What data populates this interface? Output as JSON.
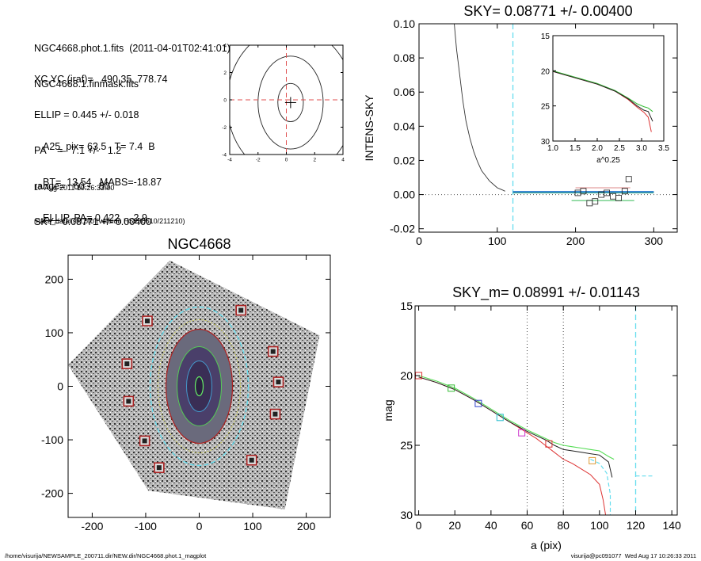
{
  "header": {
    "lines": [
      "NGC4668.phot.1.fits  (2011-04-01T02:41:01)",
      "NGC4668.1.finmask.fits",
      "XC,YC (iraf)=   490.35, 778.74",
      "ELLIP = 0.445 +/- 0.018",
      "PA    =   7.1 +/-   1.2",
      "range=   60.-   80.",
      "SKY= 0.08771 +/- 0.00400",
      "A25_pix= 63.5   T= 7.4  B",
      "BT=  13.54   MABS=-18.87",
      "ELLIP, PA= 0.422     2.9"
    ],
    "date": "17-Aug-2011 10:26:33.00",
    "program": "make_datalist0.pro (version HS230610/211210)"
  },
  "footer": {
    "path": "/home/visurija/NEWSAMPLE_200711.dir/NEW.dir/NGC4668.phot.1_magplot",
    "user": "visurija@pc091077  Wed Aug 17 10:26:33 2011"
  },
  "chart_data": [
    {
      "id": "contour",
      "type": "line",
      "title": "",
      "xlim": [
        -4,
        4
      ],
      "ylim": [
        -4,
        4
      ],
      "xticks": [
        "-4",
        "-2",
        "0",
        "2",
        "4"
      ],
      "yticks": [
        "-4",
        "-2",
        "0",
        "2",
        "4"
      ],
      "center": [
        0.3,
        -0.2
      ],
      "contours": [
        {
          "rx": 0.9,
          "ry": 1.4
        },
        {
          "rx": 2.3,
          "ry": 3.4
        },
        {
          "rx": 4.5,
          "ry": 5.5
        }
      ]
    },
    {
      "id": "sky",
      "type": "line",
      "title": "SKY= 0.08771 +/- 0.00400",
      "ylabel": "INTENS-SKY",
      "xlim": [
        0,
        330
      ],
      "ylim": [
        -0.022,
        0.1
      ],
      "xticks": [
        "0",
        "100",
        "200",
        "300"
      ],
      "yticks": [
        "-0.02",
        "0.00",
        "0.02",
        "0.04",
        "0.06",
        "0.08",
        "0.10"
      ],
      "profile": {
        "x": [
          45,
          48,
          52,
          56,
          60,
          65,
          70,
          75,
          80,
          85,
          90,
          95,
          100,
          105,
          110
        ],
        "y": [
          0.1,
          0.085,
          0.07,
          0.055,
          0.043,
          0.033,
          0.025,
          0.019,
          0.014,
          0.011,
          0.008,
          0.006,
          0.004,
          0.003,
          0.002
        ]
      },
      "sky_line": {
        "x": [
          120,
          300
        ],
        "y": [
          0.0015,
          0.0015
        ]
      },
      "vline_x": 120,
      "boxes": {
        "x": [
          203,
          210,
          218,
          225,
          233,
          240,
          248,
          255,
          263,
          268
        ],
        "y": [
          0.001,
          0.002,
          -0.005,
          -0.004,
          0.0,
          0.001,
          -0.001,
          -0.002,
          0.002,
          0.009
        ]
      },
      "inset": {
        "xlabel": "a^0.25",
        "xlim": [
          1.0,
          3.5
        ],
        "ylim": [
          15,
          30
        ],
        "xticks": [
          "1.0",
          "1.5",
          "2.0",
          "2.5",
          "3.0",
          "3.5"
        ],
        "yticks": [
          "15",
          "20",
          "25",
          "30"
        ],
        "black": {
          "x": [
            1.0,
            1.5,
            2.0,
            2.4,
            2.7,
            2.9,
            3.05,
            3.15,
            3.25
          ],
          "y": [
            20.1,
            21.0,
            21.9,
            22.9,
            24.0,
            25.0,
            25.6,
            25.8,
            27.2
          ]
        },
        "green": {
          "x": [
            1.0,
            1.5,
            2.0,
            2.4,
            2.7,
            2.9,
            3.05,
            3.15,
            3.25
          ],
          "y": [
            20.0,
            20.9,
            21.8,
            22.8,
            23.9,
            24.7,
            25.1,
            25.3,
            25.8
          ]
        },
        "red": {
          "x": [
            1.0,
            1.5,
            2.0,
            2.4,
            2.7,
            2.9,
            3.05,
            3.15,
            3.22
          ],
          "y": [
            20.1,
            21.0,
            21.9,
            22.9,
            24.1,
            25.2,
            25.9,
            26.6,
            28.7
          ]
        }
      }
    },
    {
      "id": "image",
      "type": "scatter",
      "title": "NGC4668",
      "xlim": [
        -245,
        245
      ],
      "ylim": [
        -245,
        245
      ],
      "xticks": [
        "-200",
        "-100",
        "0",
        "100",
        "200"
      ],
      "yticks": [
        "-200",
        "-100",
        "0",
        "100",
        "200"
      ],
      "masked_boxes": {
        "x": [
          -97,
          78,
          -135,
          138,
          -132,
          148,
          142,
          -102,
          -75,
          98
        ],
        "y": [
          122,
          142,
          42,
          65,
          -28,
          8,
          -52,
          -102,
          -152,
          -138
        ]
      }
    },
    {
      "id": "mag",
      "type": "line",
      "title": "SKY_m=  0.08991 +/- 0.01143",
      "xlabel": "a (pix)",
      "ylabel": "mag",
      "xlim": [
        -2,
        143
      ],
      "ylim": [
        15,
        30
      ],
      "xticks": [
        "0",
        "20",
        "40",
        "60",
        "80",
        "100",
        "120",
        "140"
      ],
      "yticks": [
        "15",
        "20",
        "25",
        "30"
      ],
      "vlines_dotted": [
        60,
        80
      ],
      "vline_dashed": 120,
      "black": {
        "x": [
          0,
          10,
          20,
          30,
          40,
          50,
          60,
          65,
          70,
          75,
          80,
          85,
          90,
          95,
          100,
          105,
          107
        ],
        "y": [
          20.1,
          20.5,
          21.0,
          21.7,
          22.5,
          23.3,
          24.0,
          24.3,
          24.6,
          25.0,
          25.3,
          25.4,
          25.5,
          25.6,
          25.7,
          26.2,
          27.3
        ]
      },
      "green": {
        "x": [
          0,
          10,
          20,
          30,
          40,
          50,
          60,
          65,
          70,
          75,
          80,
          85,
          90,
          95,
          100,
          105,
          108
        ],
        "y": [
          20.0,
          20.4,
          20.9,
          21.6,
          22.4,
          23.2,
          23.9,
          24.2,
          24.5,
          24.8,
          25.0,
          25.1,
          25.2,
          25.3,
          25.4,
          25.8,
          26.0
        ]
      },
      "red": {
        "x": [
          0,
          10,
          20,
          30,
          40,
          50,
          60,
          65,
          70,
          75,
          80,
          85,
          90,
          95,
          100,
          102,
          104
        ],
        "y": [
          20.1,
          20.5,
          21.0,
          21.7,
          22.5,
          23.3,
          24.1,
          24.5,
          25.0,
          25.5,
          26.0,
          26.3,
          26.7,
          27.1,
          27.8,
          28.9,
          30.5
        ]
      },
      "cyan": {
        "x": [
          95,
          100,
          104,
          106,
          106
        ],
        "y": [
          26.0,
          26.3,
          27.0,
          28.5,
          30
        ]
      },
      "cyan_step": {
        "x": [
          120,
          130
        ],
        "y": [
          27.2,
          27.2
        ]
      },
      "boxes": [
        {
          "x": 0,
          "y": 20.0,
          "color": "#dd3333"
        },
        {
          "x": 18,
          "y": 20.9,
          "color": "#33bb33"
        },
        {
          "x": 33,
          "y": 22.0,
          "color": "#3344cc"
        },
        {
          "x": 45,
          "y": 23.0,
          "color": "#22bbcc"
        },
        {
          "x": 57,
          "y": 24.1,
          "color": "#cc33cc"
        },
        {
          "x": 72,
          "y": 24.9,
          "color": "#dd3333"
        },
        {
          "x": 96,
          "y": 26.1,
          "color": "#dd9933"
        }
      ]
    }
  ]
}
